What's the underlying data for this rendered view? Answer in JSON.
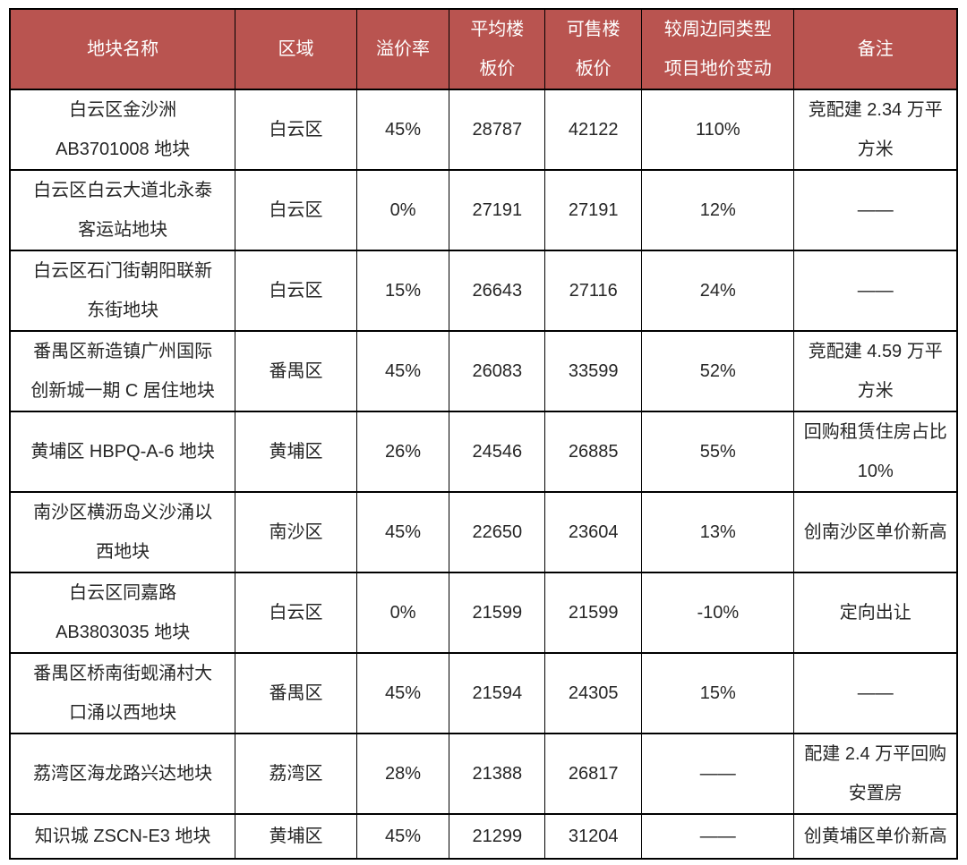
{
  "table": {
    "style": {
      "header_bg": "#b95450",
      "header_text_color": "#ffffff",
      "body_text_color": "#262626",
      "border_color": "#000000",
      "background": "#ffffff"
    },
    "columns": [
      {
        "label": "地块名称"
      },
      {
        "label": "区域"
      },
      {
        "label": "溢价率"
      },
      {
        "label": "平均楼\n板价"
      },
      {
        "label": "可售楼\n板价"
      },
      {
        "label": "较周边同类型\n项目地价变动"
      },
      {
        "label": "备注"
      }
    ],
    "rows": [
      {
        "name": "白云区金沙洲\nAB3701008 地块",
        "district": "白云区",
        "premium_rate": "45%",
        "avg_floor_price": "28787",
        "sellable_floor_price": "42122",
        "price_change": "110%",
        "remark": "竞配建 2.34 万平\n方米"
      },
      {
        "name": "白云区白云大道北永泰\n客运站地块",
        "district": "白云区",
        "premium_rate": "0%",
        "avg_floor_price": "27191",
        "sellable_floor_price": "27191",
        "price_change": "12%",
        "remark": "——"
      },
      {
        "name": "白云区石门街朝阳联新\n东街地块",
        "district": "白云区",
        "premium_rate": "15%",
        "avg_floor_price": "26643",
        "sellable_floor_price": "27116",
        "price_change": "24%",
        "remark": "——"
      },
      {
        "name": "番禺区新造镇广州国际\n创新城一期 C 居住地块",
        "district": "番禺区",
        "premium_rate": "45%",
        "avg_floor_price": "26083",
        "sellable_floor_price": "33599",
        "price_change": "52%",
        "remark": "竞配建 4.59 万平\n方米"
      },
      {
        "name": "黄埔区 HBPQ-A-6 地块",
        "district": "黄埔区",
        "premium_rate": "26%",
        "avg_floor_price": "24546",
        "sellable_floor_price": "26885",
        "price_change": "55%",
        "remark": "回购租赁住房占比\n10%"
      },
      {
        "name": "南沙区横沥岛义沙涌以\n西地块",
        "district": "南沙区",
        "premium_rate": "45%",
        "avg_floor_price": "22650",
        "sellable_floor_price": "23604",
        "price_change": "13%",
        "remark": "创南沙区单价新高"
      },
      {
        "name": "白云区同嘉路\nAB3803035 地块",
        "district": "白云区",
        "premium_rate": "0%",
        "avg_floor_price": "21599",
        "sellable_floor_price": "21599",
        "price_change": "-10%",
        "remark": "定向出让"
      },
      {
        "name": "番禺区桥南街蚬涌村大\n口涌以西地块",
        "district": "番禺区",
        "premium_rate": "45%",
        "avg_floor_price": "21594",
        "sellable_floor_price": "24305",
        "price_change": "15%",
        "remark": "——"
      },
      {
        "name": "荔湾区海龙路兴达地块",
        "district": "荔湾区",
        "premium_rate": "28%",
        "avg_floor_price": "21388",
        "sellable_floor_price": "26817",
        "price_change": "——",
        "remark": "配建 2.4 万平回购\n安置房"
      },
      {
        "name": "知识城 ZSCN-E3 地块",
        "district": "黄埔区",
        "premium_rate": "45%",
        "avg_floor_price": "21299",
        "sellable_floor_price": "31204",
        "price_change": "——",
        "remark": "创黄埔区单价新高"
      }
    ]
  }
}
